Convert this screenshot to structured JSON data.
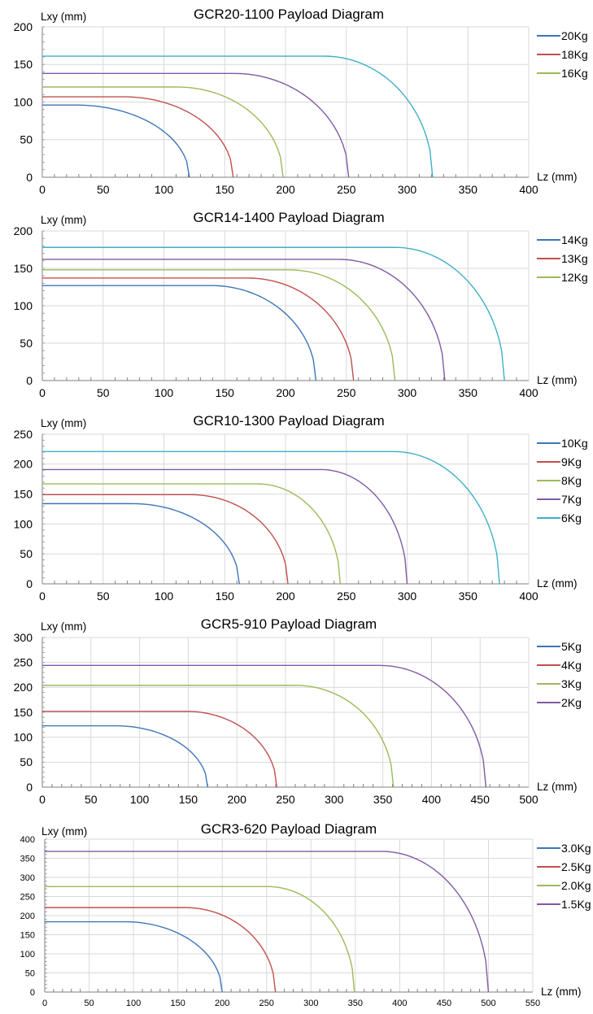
{
  "chart_data": [
    {
      "type": "line",
      "title": "GCR20-1100 Payload Diagram",
      "xlabel": "Lz (mm)",
      "ylabel": "Lxy (mm)",
      "xlim": [
        0,
        400
      ],
      "xticks": [
        0,
        50,
        100,
        150,
        200,
        250,
        300,
        350,
        400
      ],
      "ylim": [
        0,
        200
      ],
      "yticks": [
        0,
        50,
        100,
        150,
        200
      ],
      "grid": true,
      "legend": "right",
      "series": [
        {
          "name": "20Kg",
          "color": "#3d76b8",
          "flat": 96,
          "knee": 28,
          "end": 121
        },
        {
          "name": "18Kg",
          "color": "#c0504d",
          "flat": 107,
          "knee": 67,
          "end": 157
        },
        {
          "name": "16Kg",
          "color": "#9bbb59",
          "flat": 120,
          "knee": 111,
          "end": 198
        },
        {
          "name": "",
          "color": "#7f5ba6",
          "flat": 138,
          "knee": 158,
          "end": 252
        },
        {
          "name": "",
          "color": "#3eb0c6",
          "flat": 161,
          "knee": 232,
          "end": 321
        }
      ]
    },
    {
      "type": "line",
      "title": "GCR14-1400 Payload Diagram",
      "xlabel": "Lz (mm)",
      "ylabel": "Lxy (mm)",
      "xlim": [
        0,
        400
      ],
      "xticks": [
        0,
        50,
        100,
        150,
        200,
        250,
        300,
        350,
        400
      ],
      "ylim": [
        0,
        200
      ],
      "yticks": [
        0,
        50,
        100,
        150,
        200
      ],
      "grid": true,
      "legend": "right",
      "series": [
        {
          "name": "14Kg",
          "color": "#3d76b8",
          "flat": 127,
          "knee": 139,
          "end": 225
        },
        {
          "name": "13Kg",
          "color": "#c0504d",
          "flat": 137,
          "knee": 169,
          "end": 256
        },
        {
          "name": "12Kg",
          "color": "#9bbb59",
          "flat": 148,
          "knee": 203,
          "end": 290
        },
        {
          "name": "",
          "color": "#7f5ba6",
          "flat": 162,
          "knee": 244,
          "end": 331
        },
        {
          "name": "",
          "color": "#3eb0c6",
          "flat": 178,
          "knee": 290,
          "end": 380
        }
      ]
    },
    {
      "type": "line",
      "title": "GCR10-1300 Payload Diagram",
      "xlabel": "Lz (mm)",
      "ylabel": "Lxy (mm)",
      "xlim": [
        0,
        400
      ],
      "xticks": [
        0,
        50,
        100,
        150,
        200,
        250,
        300,
        350,
        400
      ],
      "ylim": [
        0,
        250
      ],
      "yticks": [
        0,
        50,
        100,
        150,
        200,
        250
      ],
      "grid": true,
      "legend": "right",
      "series": [
        {
          "name": "10Kg",
          "color": "#3d76b8",
          "flat": 134,
          "knee": 74,
          "end": 162
        },
        {
          "name": "9Kg",
          "color": "#c0504d",
          "flat": 149,
          "knee": 122,
          "end": 202
        },
        {
          "name": "8Kg",
          "color": "#9bbb59",
          "flat": 167,
          "knee": 177,
          "end": 245
        },
        {
          "name": "7Kg",
          "color": "#7f5ba6",
          "flat": 191,
          "knee": 229,
          "end": 300
        },
        {
          "name": "6Kg",
          "color": "#3eb0c6",
          "flat": 221,
          "knee": 289,
          "end": 376
        }
      ]
    },
    {
      "type": "line",
      "title": "GCR5-910 Payload Diagram",
      "xlabel": "Lz (mm)",
      "ylabel": "Lxy (mm)",
      "xlim": [
        0,
        500
      ],
      "xticks": [
        0,
        50,
        100,
        150,
        200,
        250,
        300,
        350,
        400,
        450,
        500
      ],
      "ylim": [
        0,
        300
      ],
      "yticks": [
        0,
        50,
        100,
        150,
        200,
        250,
        300
      ],
      "grid": true,
      "legend": "right",
      "series": [
        {
          "name": "5Kg",
          "color": "#3d76b8",
          "flat": 123,
          "knee": 75,
          "end": 170
        },
        {
          "name": "4Kg",
          "color": "#c0504d",
          "flat": 152,
          "knee": 148,
          "end": 241
        },
        {
          "name": "3Kg",
          "color": "#9bbb59",
          "flat": 204,
          "knee": 261,
          "end": 361
        },
        {
          "name": "2Kg",
          "color": "#7f5ba6",
          "flat": 244,
          "knee": 347,
          "end": 456
        }
      ]
    },
    {
      "type": "line",
      "title": "GCR3-620 Payload Diagram",
      "xlabel": "Lz (mm)",
      "ylabel": "Lxy (mm)",
      "xlim": [
        0,
        550
      ],
      "xticks": [
        0,
        50,
        100,
        150,
        200,
        250,
        300,
        350,
        400,
        450,
        500,
        550
      ],
      "ylim": [
        0,
        400
      ],
      "yticks": [
        0,
        50,
        100,
        150,
        200,
        250,
        300,
        350,
        400
      ],
      "grid": true,
      "legend": "right",
      "series": [
        {
          "name": "3.0Kg",
          "color": "#3d76b8",
          "flat": 184,
          "knee": 90,
          "end": 200
        },
        {
          "name": "2.5Kg",
          "color": "#c0504d",
          "flat": 221,
          "knee": 158,
          "end": 260
        },
        {
          "name": "2.0Kg",
          "color": "#9bbb59",
          "flat": 276,
          "knee": 251,
          "end": 349
        },
        {
          "name": "1.5Kg",
          "color": "#7f5ba6",
          "flat": 368,
          "knee": 380,
          "end": 500
        }
      ]
    }
  ]
}
